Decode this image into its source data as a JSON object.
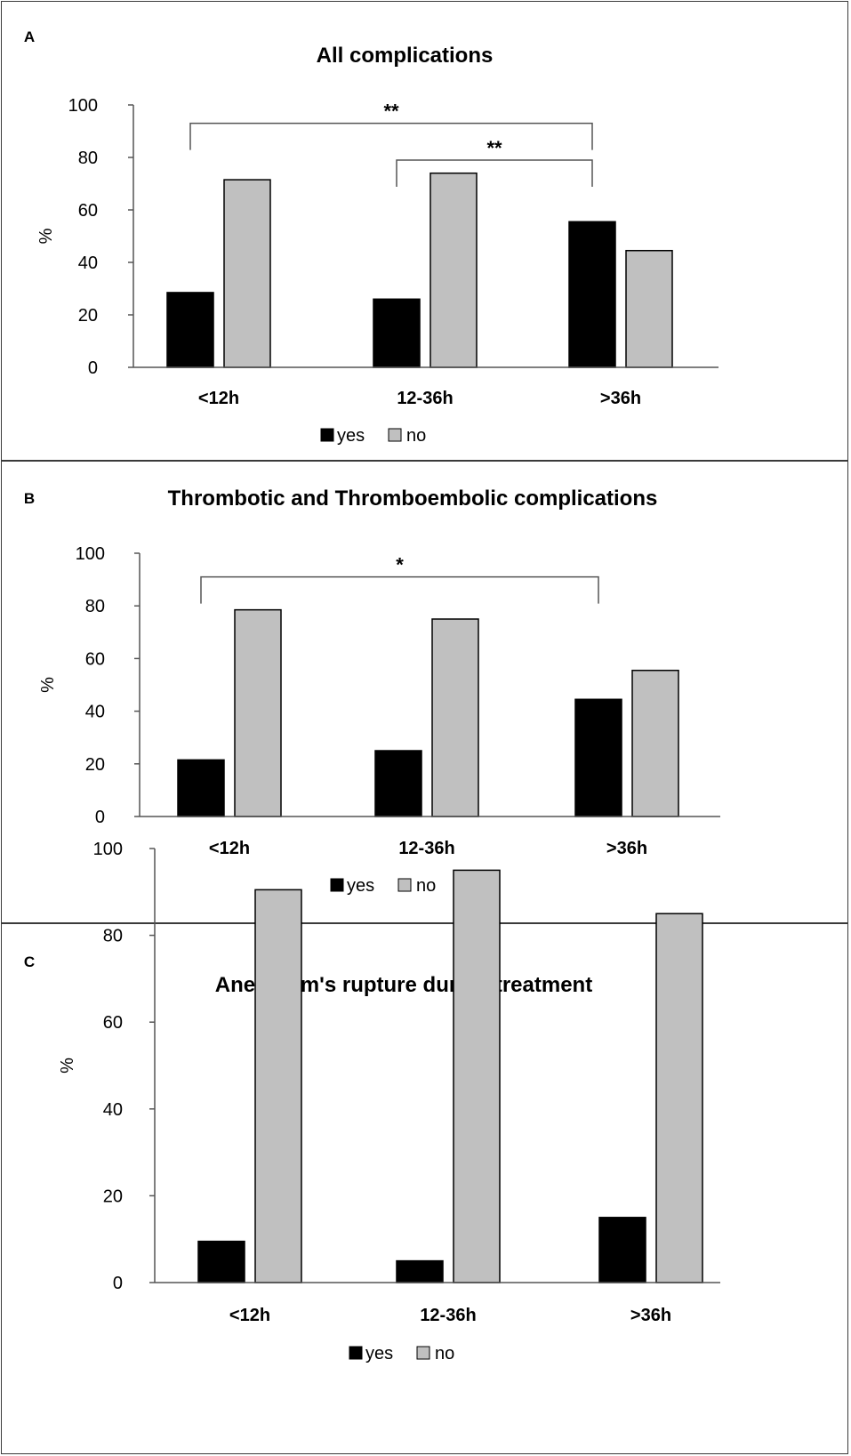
{
  "legend": {
    "yes": "yes",
    "no": "no"
  },
  "colors": {
    "yes": "#000000",
    "no": "#c0c0c0",
    "axis": "#555555",
    "bracket": "#555555",
    "frame": "#3a3a3a"
  },
  "chart_data": [
    {
      "panel_letter": "A",
      "type": "bar",
      "title": "All complications",
      "xlabel": "",
      "ylabel": "%",
      "ylim": [
        0,
        100
      ],
      "yticks": [
        0,
        20,
        40,
        60,
        80,
        100
      ],
      "categories": [
        "<12h",
        "12-36h",
        ">36h"
      ],
      "series": [
        {
          "name": "yes",
          "values": [
            28.5,
            26,
            55.5
          ]
        },
        {
          "name": "no",
          "values": [
            71.5,
            74,
            44.5
          ]
        }
      ],
      "brackets": [
        {
          "from": 0,
          "to": 2,
          "level": 93,
          "label": "**"
        },
        {
          "from": 1,
          "to": 2,
          "level": 79,
          "label": "**"
        }
      ],
      "grid": false,
      "legend_position": "bottom"
    },
    {
      "panel_letter": "B",
      "type": "bar",
      "title": "Thrombotic and Thromboembolic complications",
      "xlabel": "",
      "ylabel": "%",
      "ylim": [
        0,
        100
      ],
      "yticks": [
        0,
        20,
        40,
        60,
        80,
        100
      ],
      "categories": [
        "<12h",
        "12-36h",
        ">36h"
      ],
      "series": [
        {
          "name": "yes",
          "values": [
            21.5,
            25,
            44.5
          ]
        },
        {
          "name": "no",
          "values": [
            78.5,
            75,
            55.5
          ]
        }
      ],
      "brackets": [
        {
          "from": 0,
          "to": 2,
          "level": 91,
          "label": "*"
        }
      ],
      "grid": false,
      "legend_position": "bottom"
    },
    {
      "panel_letter": "C",
      "type": "bar",
      "title": "Aneurysm's rupture during treatment",
      "xlabel": "",
      "ylabel": "%",
      "ylim": [
        0,
        100
      ],
      "yticks": [
        0,
        20,
        40,
        60,
        80,
        100
      ],
      "categories": [
        "<12h",
        "12-36h",
        ">36h"
      ],
      "series": [
        {
          "name": "yes",
          "values": [
            9.5,
            5,
            15
          ]
        },
        {
          "name": "no",
          "values": [
            90.5,
            95,
            85
          ]
        }
      ],
      "brackets": [],
      "grid": false,
      "legend_position": "bottom"
    }
  ]
}
